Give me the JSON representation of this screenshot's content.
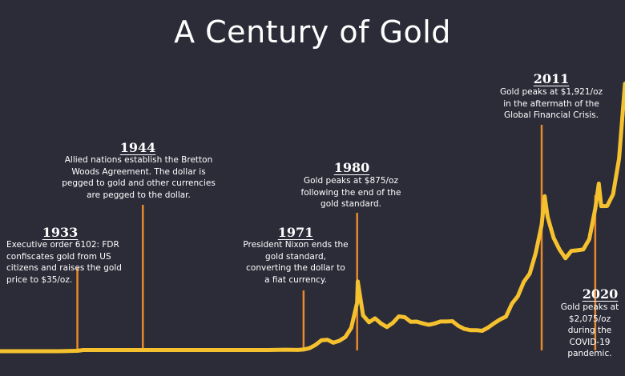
{
  "chart_data": {
    "type": "line",
    "title": "A Century of Gold",
    "series": [
      {
        "values": [
          {
            "x": 1920,
            "y": 20.67
          },
          {
            "x": 1925,
            "y": 20.67
          },
          {
            "x": 1930,
            "y": 20.67
          },
          {
            "x": 1933,
            "y": 26
          },
          {
            "x": 1934,
            "y": 35
          },
          {
            "x": 1940,
            "y": 35
          },
          {
            "x": 1944,
            "y": 35
          },
          {
            "x": 1950,
            "y": 35
          },
          {
            "x": 1955,
            "y": 35
          },
          {
            "x": 1960,
            "y": 35
          },
          {
            "x": 1965,
            "y": 35
          },
          {
            "x": 1968,
            "y": 39
          },
          {
            "x": 1970,
            "y": 36
          },
          {
            "x": 1971,
            "y": 41
          },
          {
            "x": 1972,
            "y": 58
          },
          {
            "x": 1973,
            "y": 97
          },
          {
            "x": 1974,
            "y": 154
          },
          {
            "x": 1975,
            "y": 161
          },
          {
            "x": 1976,
            "y": 125
          },
          {
            "x": 1977,
            "y": 148
          },
          {
            "x": 1978,
            "y": 193
          },
          {
            "x": 1979,
            "y": 306
          },
          {
            "x": 1980,
            "y": 615
          },
          {
            "x": 1980.1,
            "y": 875
          },
          {
            "x": 1981,
            "y": 460
          },
          {
            "x": 1982,
            "y": 376
          },
          {
            "x": 1983,
            "y": 424
          },
          {
            "x": 1984,
            "y": 361
          },
          {
            "x": 1985,
            "y": 317
          },
          {
            "x": 1986,
            "y": 368
          },
          {
            "x": 1987,
            "y": 447
          },
          {
            "x": 1988,
            "y": 437
          },
          {
            "x": 1989,
            "y": 381
          },
          {
            "x": 1990,
            "y": 383
          },
          {
            "x": 1991,
            "y": 362
          },
          {
            "x": 1992,
            "y": 344
          },
          {
            "x": 1993,
            "y": 360
          },
          {
            "x": 1994,
            "y": 384
          },
          {
            "x": 1995,
            "y": 384
          },
          {
            "x": 1996,
            "y": 388
          },
          {
            "x": 1997,
            "y": 331
          },
          {
            "x": 1998,
            "y": 294
          },
          {
            "x": 1999,
            "y": 279
          },
          {
            "x": 2000,
            "y": 279
          },
          {
            "x": 2001,
            "y": 271
          },
          {
            "x": 2002,
            "y": 310
          },
          {
            "x": 2003,
            "y": 363
          },
          {
            "x": 2004,
            "y": 409
          },
          {
            "x": 2005,
            "y": 444
          },
          {
            "x": 2006,
            "y": 603
          },
          {
            "x": 2007,
            "y": 695
          },
          {
            "x": 2008,
            "y": 871
          },
          {
            "x": 2009,
            "y": 972
          },
          {
            "x": 2010,
            "y": 1224
          },
          {
            "x": 2011,
            "y": 1571
          },
          {
            "x": 2011.5,
            "y": 1921
          },
          {
            "x": 2012,
            "y": 1668
          },
          {
            "x": 2013,
            "y": 1411
          },
          {
            "x": 2014,
            "y": 1266
          },
          {
            "x": 2015,
            "y": 1160
          },
          {
            "x": 2016,
            "y": 1250
          },
          {
            "x": 2017,
            "y": 1257
          },
          {
            "x": 2018,
            "y": 1268
          },
          {
            "x": 2019,
            "y": 1393
          },
          {
            "x": 2020,
            "y": 1769
          },
          {
            "x": 2020.6,
            "y": 2075
          },
          {
            "x": 2021,
            "y": 1799
          },
          {
            "x": 2022,
            "y": 1800
          },
          {
            "x": 2023,
            "y": 1943
          },
          {
            "x": 2024,
            "y": 2380
          },
          {
            "x": 2025,
            "y": 3300
          }
        ]
      }
    ],
    "annotations": [
      {
        "year": "1933",
        "x": 1933,
        "text": "Executive order 6102: FDR confiscates gold from US citizens and raises the gold price to $35/oz."
      },
      {
        "year": "1944",
        "x": 1944,
        "text": "Allied nations establish the Bretton Woods Agreement. The dollar is pegged to gold and other currencies are pegged to the dollar."
      },
      {
        "year": "1971",
        "x": 1971,
        "text": "President Nixon ends the gold standard, converting the dollar to a fiat currency."
      },
      {
        "year": "1980",
        "x": 1980,
        "text": "Gold peaks at $875/oz following the end of the gold standard."
      },
      {
        "year": "2011",
        "x": 2011,
        "text": "Gold peaks at $1,921/oz in the aftermath of the Global Financial Crisis."
      },
      {
        "year": "2020",
        "x": 2020,
        "text": "Gold peaks at $2,075/oz during the COVID-19 pandemic."
      }
    ],
    "xlabel": "",
    "ylabel": "",
    "grid": false,
    "colors": {
      "background": "#2b2c38",
      "line": "#f6c12e",
      "marker_line": "#e8892b",
      "text": "#ffffff"
    }
  }
}
